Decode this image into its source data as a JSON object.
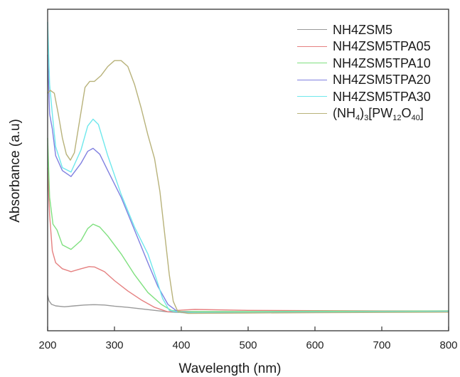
{
  "chart_data": {
    "type": "line",
    "xlabel": "Wavelength (nm)",
    "ylabel": "Absorbance (a.u)",
    "xlim": [
      200,
      800
    ],
    "ylim": [
      0,
      1
    ],
    "x_ticks": [
      200,
      300,
      400,
      500,
      600,
      700,
      800
    ],
    "y_ticks_shown": false,
    "grid": false,
    "legend_position": "top-right",
    "series": [
      {
        "name": "NH4ZSM5",
        "color": "#9a9a9a",
        "points": [
          [
            200,
            0.09
          ],
          [
            202,
            0.072
          ],
          [
            206,
            0.06
          ],
          [
            212,
            0.055
          ],
          [
            225,
            0.052
          ],
          [
            240,
            0.055
          ],
          [
            255,
            0.058
          ],
          [
            270,
            0.059
          ],
          [
            285,
            0.058
          ],
          [
            300,
            0.054
          ],
          [
            320,
            0.05
          ],
          [
            340,
            0.045
          ],
          [
            360,
            0.04
          ],
          [
            380,
            0.035
          ],
          [
            395,
            0.033
          ],
          [
            420,
            0.033
          ],
          [
            500,
            0.034
          ],
          [
            600,
            0.035
          ],
          [
            700,
            0.036
          ],
          [
            800,
            0.037
          ]
        ]
      },
      {
        "name": "NH4ZSM5TPA05",
        "color": "#e58080",
        "points": [
          [
            200,
            0.52
          ],
          [
            203,
            0.36
          ],
          [
            207,
            0.24
          ],
          [
            212,
            0.2
          ],
          [
            222,
            0.18
          ],
          [
            235,
            0.17
          ],
          [
            250,
            0.18
          ],
          [
            262,
            0.187
          ],
          [
            270,
            0.186
          ],
          [
            285,
            0.17
          ],
          [
            300,
            0.14
          ],
          [
            320,
            0.105
          ],
          [
            340,
            0.075
          ],
          [
            360,
            0.05
          ],
          [
            380,
            0.035
          ],
          [
            395,
            0.04
          ],
          [
            420,
            0.043
          ],
          [
            500,
            0.04
          ],
          [
            600,
            0.039
          ],
          [
            700,
            0.038
          ],
          [
            800,
            0.038
          ]
        ]
      },
      {
        "name": "NH4ZSM5TPA10",
        "color": "#7fe07f",
        "points": [
          [
            200,
            0.62
          ],
          [
            203,
            0.42
          ],
          [
            208,
            0.33
          ],
          [
            214,
            0.31
          ],
          [
            222,
            0.26
          ],
          [
            235,
            0.245
          ],
          [
            250,
            0.275
          ],
          [
            260,
            0.315
          ],
          [
            268,
            0.33
          ],
          [
            278,
            0.32
          ],
          [
            290,
            0.29
          ],
          [
            310,
            0.23
          ],
          [
            330,
            0.16
          ],
          [
            350,
            0.1
          ],
          [
            370,
            0.06
          ],
          [
            385,
            0.04
          ],
          [
            400,
            0.036
          ],
          [
            500,
            0.036
          ],
          [
            600,
            0.037
          ],
          [
            700,
            0.037
          ],
          [
            800,
            0.038
          ]
        ]
      },
      {
        "name": "NH4ZSM5TPA20",
        "color": "#8080e0",
        "points": [
          [
            200,
            0.9
          ],
          [
            203,
            0.7
          ],
          [
            207,
            0.65
          ],
          [
            212,
            0.56
          ],
          [
            222,
            0.51
          ],
          [
            235,
            0.49
          ],
          [
            250,
            0.535
          ],
          [
            260,
            0.575
          ],
          [
            268,
            0.585
          ],
          [
            278,
            0.565
          ],
          [
            290,
            0.51
          ],
          [
            310,
            0.42
          ],
          [
            330,
            0.31
          ],
          [
            350,
            0.2
          ],
          [
            365,
            0.12
          ],
          [
            380,
            0.06
          ],
          [
            395,
            0.035
          ],
          [
            420,
            0.032
          ],
          [
            500,
            0.033
          ],
          [
            600,
            0.034
          ],
          [
            700,
            0.035
          ],
          [
            800,
            0.036
          ]
        ]
      },
      {
        "name": "NH4ZSM5TPA30",
        "color": "#6fe8ec",
        "points": [
          [
            200,
            1.01
          ],
          [
            203,
            0.8
          ],
          [
            207,
            0.7
          ],
          [
            212,
            0.59
          ],
          [
            222,
            0.52
          ],
          [
            235,
            0.505
          ],
          [
            250,
            0.58
          ],
          [
            260,
            0.66
          ],
          [
            268,
            0.683
          ],
          [
            276,
            0.665
          ],
          [
            290,
            0.56
          ],
          [
            310,
            0.43
          ],
          [
            330,
            0.32
          ],
          [
            350,
            0.23
          ],
          [
            362,
            0.15
          ],
          [
            372,
            0.08
          ],
          [
            382,
            0.04
          ],
          [
            400,
            0.032
          ],
          [
            500,
            0.033
          ],
          [
            600,
            0.034
          ],
          [
            700,
            0.035
          ],
          [
            800,
            0.036
          ]
        ]
      },
      {
        "name": "(NH4)3[PW12O40]",
        "color": "#b8b27a",
        "points": [
          [
            200,
            0.77
          ],
          [
            204,
            0.78
          ],
          [
            210,
            0.77
          ],
          [
            216,
            0.7
          ],
          [
            222,
            0.62
          ],
          [
            228,
            0.565
          ],
          [
            234,
            0.545
          ],
          [
            240,
            0.57
          ],
          [
            248,
            0.68
          ],
          [
            256,
            0.79
          ],
          [
            263,
            0.81
          ],
          [
            270,
            0.81
          ],
          [
            280,
            0.83
          ],
          [
            290,
            0.86
          ],
          [
            300,
            0.88
          ],
          [
            310,
            0.88
          ],
          [
            320,
            0.86
          ],
          [
            330,
            0.8
          ],
          [
            340,
            0.72
          ],
          [
            350,
            0.63
          ],
          [
            360,
            0.55
          ],
          [
            368,
            0.44
          ],
          [
            375,
            0.3
          ],
          [
            382,
            0.16
          ],
          [
            388,
            0.07
          ],
          [
            395,
            0.035
          ],
          [
            410,
            0.03
          ],
          [
            500,
            0.031
          ],
          [
            600,
            0.032
          ],
          [
            700,
            0.033
          ],
          [
            800,
            0.034
          ]
        ]
      }
    ]
  }
}
